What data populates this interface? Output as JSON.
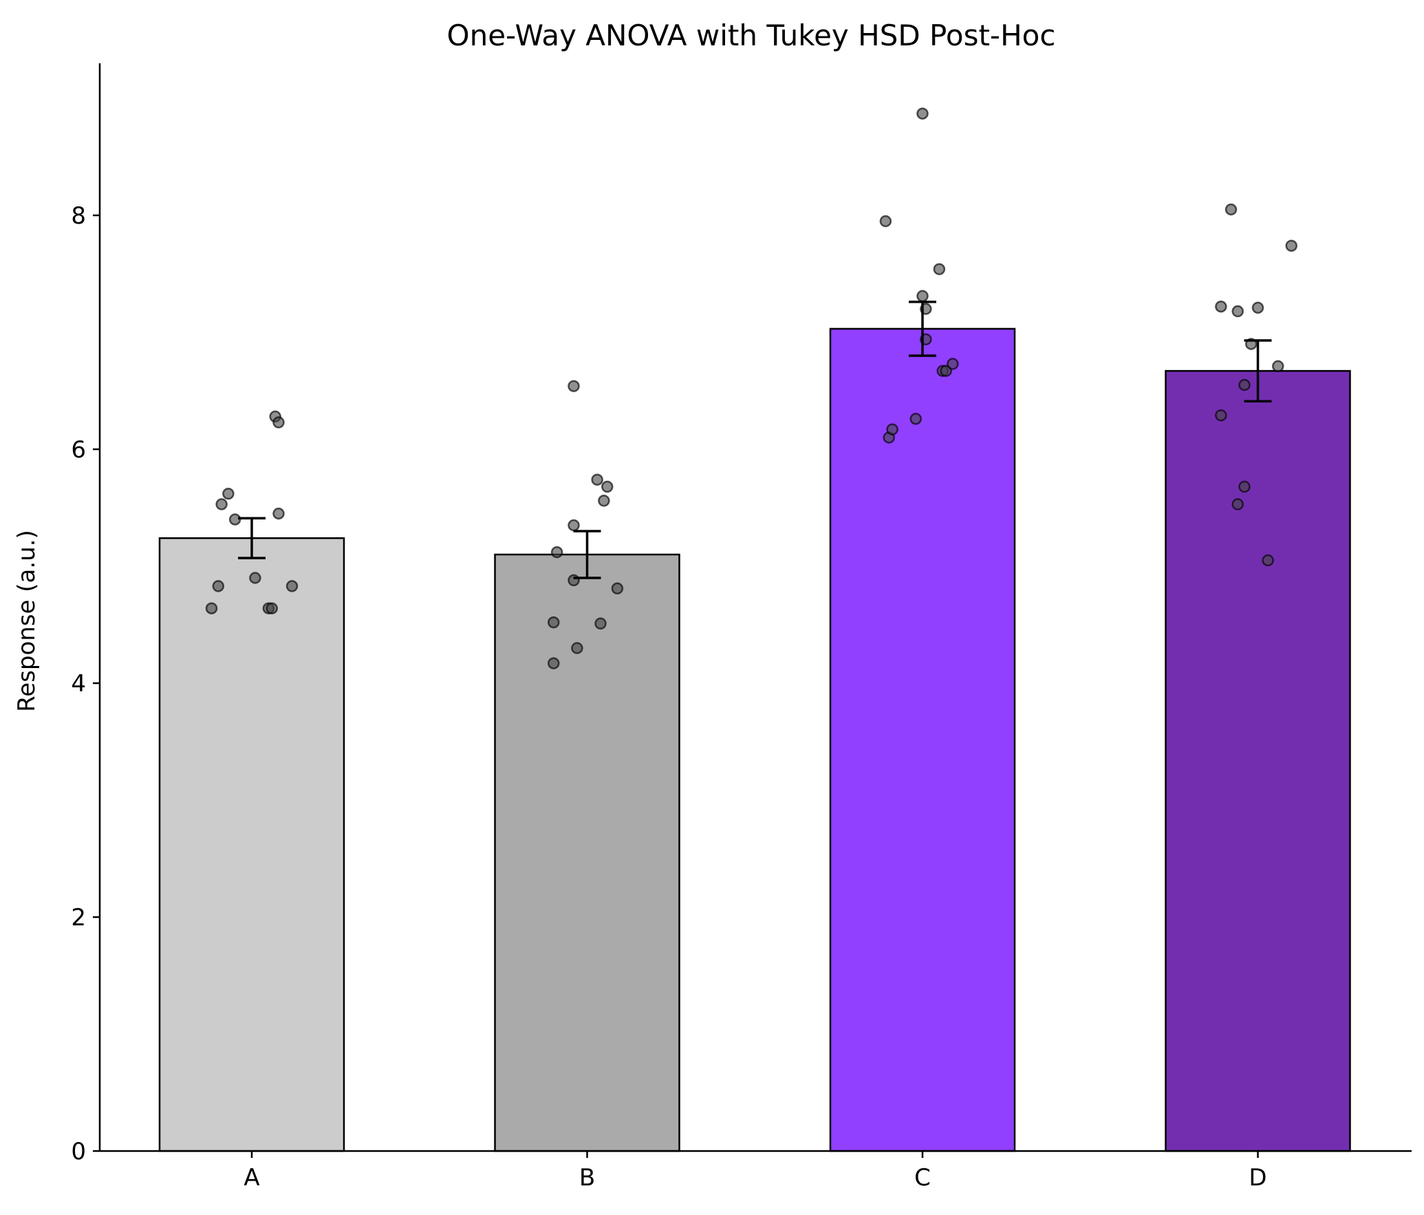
{
  "chart_data": {
    "type": "bar",
    "title": "One-Way ANOVA with Tukey HSD Post-Hoc",
    "xlabel": "",
    "ylabel": "Response (a.u.)",
    "ylim": [
      0,
      9.3
    ],
    "yticks": [
      0,
      2,
      4,
      6,
      8
    ],
    "ytick_labels": [
      "0",
      "2",
      "4",
      "6",
      "8"
    ],
    "grid": false,
    "categories": [
      "A",
      "B",
      "C",
      "D"
    ],
    "values": [
      5.24,
      5.1,
      7.03,
      6.67
    ],
    "errors": [
      0.17,
      0.2,
      0.23,
      0.26
    ],
    "colors": [
      "#cccccc",
      "#aaaaaa",
      "#9140ff",
      "#732eb0"
    ],
    "points": [
      [
        {
          "dx": -0.12,
          "y": 4.64
        },
        {
          "dx": -0.1,
          "y": 4.83
        },
        {
          "dx": -0.09,
          "y": 5.53
        },
        {
          "dx": -0.07,
          "y": 5.62
        },
        {
          "dx": -0.05,
          "y": 5.4
        },
        {
          "dx": 0.01,
          "y": 4.9
        },
        {
          "dx": 0.05,
          "y": 4.64
        },
        {
          "dx": 0.06,
          "y": 4.64
        },
        {
          "dx": 0.07,
          "y": 6.28
        },
        {
          "dx": 0.08,
          "y": 6.23
        },
        {
          "dx": 0.08,
          "y": 5.45
        },
        {
          "dx": 0.12,
          "y": 4.83
        }
      ],
      [
        {
          "dx": -0.1,
          "y": 4.52
        },
        {
          "dx": -0.1,
          "y": 4.17
        },
        {
          "dx": -0.09,
          "y": 5.12
        },
        {
          "dx": -0.04,
          "y": 6.54
        },
        {
          "dx": -0.04,
          "y": 5.35
        },
        {
          "dx": -0.04,
          "y": 4.88
        },
        {
          "dx": -0.03,
          "y": 4.3
        },
        {
          "dx": 0.03,
          "y": 5.74
        },
        {
          "dx": 0.04,
          "y": 4.51
        },
        {
          "dx": 0.05,
          "y": 5.56
        },
        {
          "dx": 0.06,
          "y": 5.68
        },
        {
          "dx": 0.09,
          "y": 4.81
        }
      ],
      [
        {
          "dx": -0.11,
          "y": 7.95
        },
        {
          "dx": -0.1,
          "y": 6.1
        },
        {
          "dx": -0.09,
          "y": 6.17
        },
        {
          "dx": -0.02,
          "y": 6.26
        },
        {
          "dx": 0.0,
          "y": 8.87
        },
        {
          "dx": 0.0,
          "y": 7.31
        },
        {
          "dx": 0.01,
          "y": 7.2
        },
        {
          "dx": 0.01,
          "y": 6.94
        },
        {
          "dx": 0.05,
          "y": 7.54
        },
        {
          "dx": 0.06,
          "y": 6.67
        },
        {
          "dx": 0.07,
          "y": 6.67
        },
        {
          "dx": 0.09,
          "y": 6.73
        }
      ],
      [
        {
          "dx": -0.11,
          "y": 7.22
        },
        {
          "dx": -0.11,
          "y": 6.29
        },
        {
          "dx": -0.08,
          "y": 8.05
        },
        {
          "dx": -0.06,
          "y": 7.18
        },
        {
          "dx": -0.06,
          "y": 5.53
        },
        {
          "dx": -0.04,
          "y": 6.55
        },
        {
          "dx": -0.04,
          "y": 5.68
        },
        {
          "dx": -0.02,
          "y": 6.9
        },
        {
          "dx": 0.0,
          "y": 7.21
        },
        {
          "dx": 0.03,
          "y": 5.05
        },
        {
          "dx": 0.06,
          "y": 6.71
        },
        {
          "dx": 0.1,
          "y": 7.74
        }
      ]
    ]
  }
}
